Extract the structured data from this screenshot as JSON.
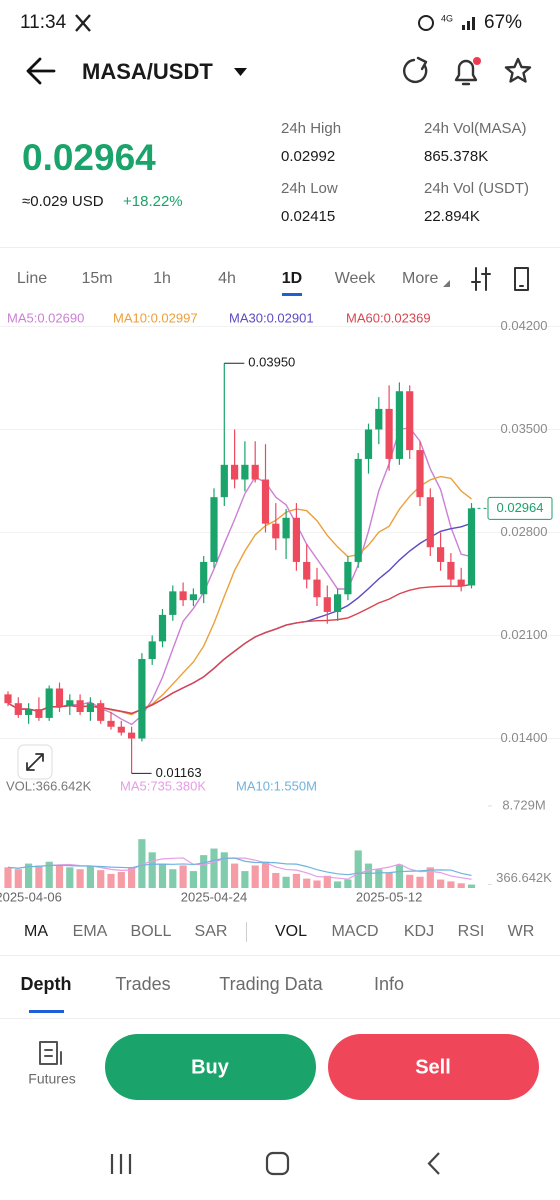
{
  "status_bar": {
    "time": "11:34",
    "network": "4G",
    "battery": "67%"
  },
  "header": {
    "pair": "MASA/USDT"
  },
  "ticker": {
    "price": "0.02964",
    "usd": "≈0.029 USD",
    "change": "+18.22%",
    "stats": [
      {
        "label": "24h High",
        "value": "0.02992"
      },
      {
        "label": "24h Low",
        "value": "0.02415"
      },
      {
        "label": "24h Vol(MASA)",
        "value": "865.378K"
      },
      {
        "label": "24h Vol (USDT)",
        "value": "22.894K"
      }
    ]
  },
  "intervals": [
    "Line",
    "15m",
    "1h",
    "4h",
    "1D",
    "Week",
    "More"
  ],
  "chart_data": {
    "type": "candlestick",
    "categories": [
      null,
      null,
      "2025-04-06",
      null,
      null,
      null,
      null,
      null,
      null,
      null,
      null,
      null,
      null,
      null,
      null,
      null,
      null,
      null,
      null,
      null,
      "2025-04-24",
      null,
      null,
      null,
      null,
      null,
      null,
      null,
      null,
      null,
      null,
      null,
      null,
      null,
      null,
      null,
      null,
      "2025-05-12",
      null,
      null,
      null,
      null,
      null,
      null,
      null,
      null
    ],
    "open": [
      0.017,
      0.0164,
      0.0156,
      0.016,
      0.0154,
      0.0174,
      0.0162,
      0.0166,
      0.0158,
      0.0164,
      0.0152,
      0.0148,
      0.0144,
      0.014,
      0.0194,
      0.0206,
      0.0224,
      0.024,
      0.0234,
      0.0238,
      0.026,
      0.0304,
      0.0326,
      0.0316,
      0.0326,
      0.0316,
      0.0286,
      0.0276,
      0.029,
      0.026,
      0.0248,
      0.0236,
      0.0226,
      0.0238,
      0.026,
      0.033,
      0.035,
      0.0364,
      0.033,
      0.0376,
      0.0336,
      0.0304,
      0.027,
      0.026,
      0.0248,
      0.0244
    ],
    "high": [
      0.0172,
      0.0168,
      0.0164,
      0.0168,
      0.0176,
      0.0178,
      0.017,
      0.017,
      0.0168,
      0.0166,
      0.0158,
      0.0152,
      0.0148,
      0.0198,
      0.021,
      0.0228,
      0.0244,
      0.0246,
      0.0242,
      0.0264,
      0.031,
      0.0395,
      0.035,
      0.0342,
      0.0342,
      0.034,
      0.03,
      0.0296,
      0.03,
      0.0272,
      0.0256,
      0.0244,
      0.0242,
      0.0264,
      0.0334,
      0.0354,
      0.0372,
      0.038,
      0.0382,
      0.038,
      0.0342,
      0.031,
      0.028,
      0.0266,
      0.0256,
      0.03
    ],
    "low": [
      0.0162,
      0.0154,
      0.015,
      0.0152,
      0.0152,
      0.0158,
      0.0156,
      0.0156,
      0.0152,
      0.015,
      0.0146,
      0.0142,
      0.01163,
      0.0138,
      0.019,
      0.0202,
      0.022,
      0.023,
      0.023,
      0.0232,
      0.0256,
      0.0298,
      0.031,
      0.0308,
      0.0314,
      0.028,
      0.0268,
      0.0262,
      0.0254,
      0.0242,
      0.023,
      0.0218,
      0.022,
      0.0234,
      0.0256,
      0.032,
      0.034,
      0.0322,
      0.0326,
      0.033,
      0.0298,
      0.0264,
      0.0254,
      0.0244,
      0.024,
      0.0242
    ],
    "close": [
      0.0164,
      0.0156,
      0.016,
      0.0154,
      0.0174,
      0.0162,
      0.0166,
      0.0158,
      0.0164,
      0.0152,
      0.0148,
      0.0144,
      0.014,
      0.0194,
      0.0206,
      0.0224,
      0.024,
      0.0234,
      0.0238,
      0.026,
      0.0304,
      0.0326,
      0.0316,
      0.0326,
      0.0316,
      0.0286,
      0.0276,
      0.029,
      0.026,
      0.0248,
      0.0236,
      0.0226,
      0.0238,
      0.026,
      0.033,
      0.035,
      0.0364,
      0.033,
      0.0376,
      0.0336,
      0.0304,
      0.027,
      0.026,
      0.0248,
      0.0244,
      0.02964
    ],
    "up_color": "#1aa36a",
    "down_color": "#ee4a5d",
    "ylim": [
      0.0105,
      0.0438
    ],
    "yticks": [
      {
        "value": 0.042,
        "label": "0.04200"
      },
      {
        "value": 0.035,
        "label": "0.03500"
      },
      {
        "value": 0.028,
        "label": "0.02800"
      },
      {
        "value": 0.021,
        "label": "0.02100"
      },
      {
        "value": 0.014,
        "label": "0.01400"
      }
    ],
    "grid": true,
    "last_price": 0.02964,
    "annotations": [
      {
        "value": 0.0395,
        "label": "0.03950"
      },
      {
        "value": 0.01163,
        "label": "0.01163"
      }
    ],
    "moving_averages": [
      {
        "label": "MA5:0.02690",
        "color": "#cc7fd6"
      },
      {
        "label": "MA10:0.02997",
        "color": "#eba03a"
      },
      {
        "label": "MA30:0.02901",
        "color": "#5b4bc4"
      },
      {
        "label": "MA60:0.02369",
        "color": "#d9454f"
      }
    ],
    "volume": {
      "values": [
        2200000,
        2000000,
        2600000,
        2400000,
        2800000,
        2500000,
        2200000,
        2000000,
        2300000,
        1900000,
        1500000,
        1700000,
        2200000,
        5200000,
        3800000,
        2600000,
        2000000,
        2400000,
        1800000,
        3500000,
        4200000,
        3800000,
        2600000,
        1800000,
        2400000,
        2800000,
        1600000,
        1200000,
        1500000,
        1000000,
        800000,
        1300000,
        700000,
        900000,
        4000000,
        2600000,
        2000000,
        1600000,
        2500000,
        1400000,
        1200000,
        2200000,
        900000,
        700000,
        500000,
        366642
      ],
      "ylim": [
        0,
        8729000
      ],
      "yticks": [
        {
          "value": 8729000,
          "label": "8.729M"
        },
        {
          "value": 366642,
          "label": "366.642K"
        }
      ],
      "legend": [
        {
          "label": "VOL:366.642K",
          "color": "#777777"
        },
        {
          "label": "MA5:735.380K",
          "color": "#e79ce6"
        },
        {
          "label": "MA10:1.550M",
          "color": "#6fb3df"
        }
      ]
    }
  },
  "indicators_main": [
    "MA",
    "EMA",
    "BOLL",
    "SAR"
  ],
  "indicators_sub": [
    "VOL",
    "MACD",
    "KDJ",
    "RSI",
    "WR"
  ],
  "tabs": [
    "Depth",
    "Trades",
    "Trading Data",
    "Info"
  ],
  "actions": {
    "futures": "Futures",
    "buy": "Buy",
    "sell": "Sell"
  }
}
